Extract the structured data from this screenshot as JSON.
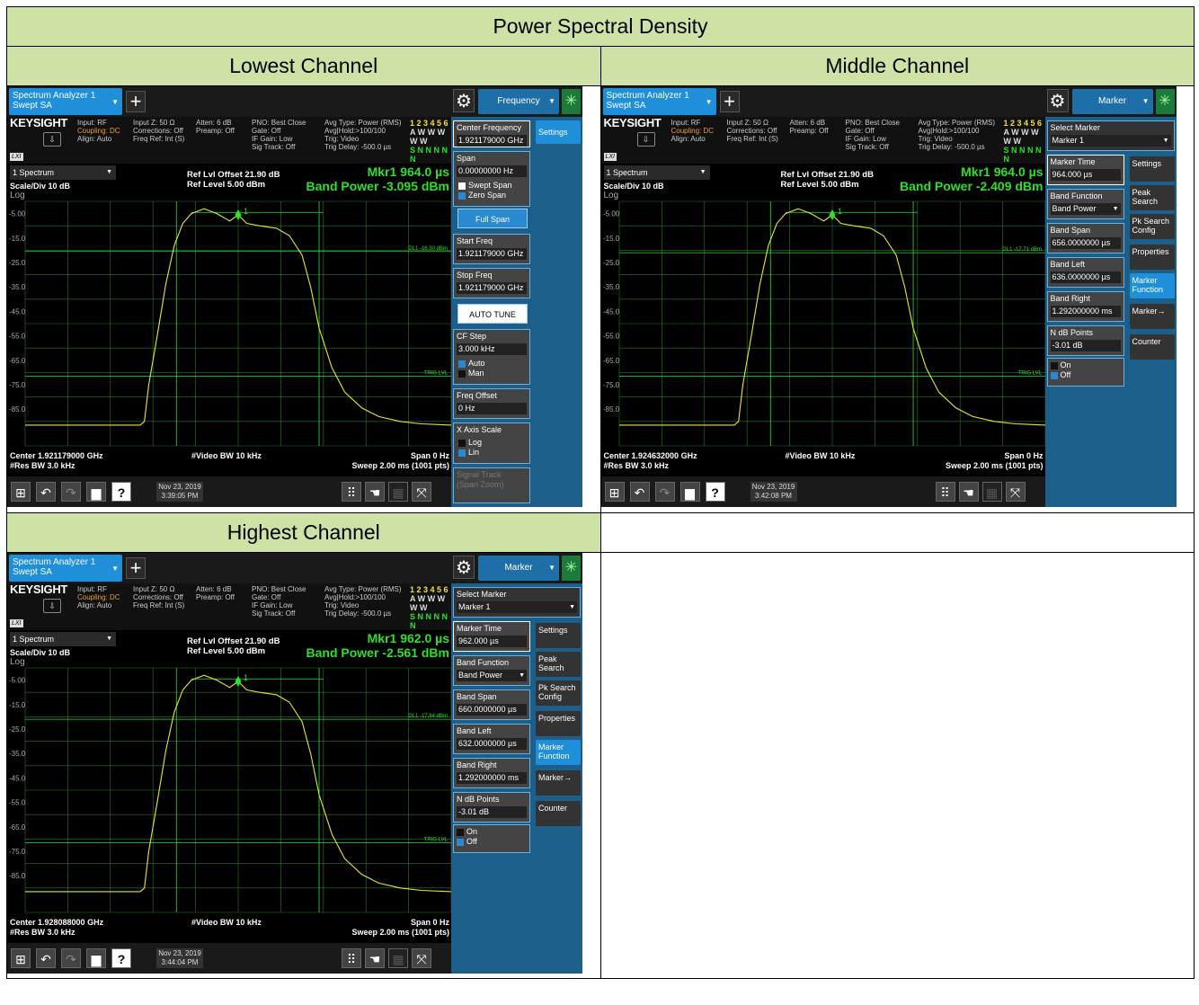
{
  "doc": {
    "title": "Power Spectral Density",
    "lowest": "Lowest Channel",
    "middle": "Middle Channel",
    "highest": "Highest Channel"
  },
  "common": {
    "tab_line1": "Spectrum Analyzer 1",
    "tab_line2": "Swept SA",
    "brand": "KEYSIGHT",
    "lxi": "LXI",
    "input": "Input: RF",
    "coupling": "Coupling: DC",
    "align": "Align: Auto",
    "inputz": "Input Z: 50 Ω",
    "corrections": "Corrections: Off",
    "freqref": "Freq Ref: Int (S)",
    "atten": "Atten: 6 dB",
    "preamp": "Preamp: Off",
    "pno": "PNO: Best Close",
    "gate": "Gate: Off",
    "ifgain": "IF Gain: Low",
    "sigtrack": "Sig Track: Off",
    "avgtype": "Avg Type: Power (RMS)",
    "avghold": "Avg|Hold:>100/100",
    "trig": "Trig: Video",
    "trigdelay": "Trig Delay: -500.0 µs",
    "trace_row1": "1 2 3 4 5 6",
    "trace_row2": "A W W W W W",
    "trace_row3": "S N N N N N",
    "spectrum": "1 Spectrum",
    "scale": "Scale/Div 10 dB",
    "log": "Log",
    "ref_offset": "Ref Lvl Offset 21.90 dB",
    "ref_level": "Ref Level 5.00 dBm",
    "vbw": "#Video BW 10 kHz",
    "rbw": "#Res BW 3.0 kHz",
    "span": "Span 0 Hz",
    "sweep": "Sweep 2.00 ms (1001 pts)",
    "trig_lvl": "TRIG LVL",
    "yticks": [
      "-5.00",
      "-15.0",
      "-25.0",
      "-35.0",
      "-45.0",
      "-55.0",
      "-65.0",
      "-75.0",
      "-85.0"
    ],
    "marker_tag": "1"
  },
  "low": {
    "mode": "Frequency",
    "mkr": "Mkr1  964.0 µs",
    "band": "Band Power -3.095 dBm",
    "center": "Center 1.921179000 GHz",
    "date": "Nov 23, 2019",
    "time": "3:39:05 PM",
    "dl": "DL1 -16.30 dBm",
    "p_cf": "Center Frequency",
    "p_cf_v": "1.921179000 GHz",
    "p_span": "Span",
    "p_span_v": "0.00000000 Hz",
    "p_swept": "Swept Span",
    "p_zero": "Zero Span",
    "p_full": "Full Span",
    "p_start": "Start Freq",
    "p_start_v": "1.921179000 GHz",
    "p_stop": "Stop Freq",
    "p_stop_v": "1.921179000 GHz",
    "p_auto": "AUTO TUNE",
    "p_cfstep": "CF Step",
    "p_cfstep_v": "3.000 kHz",
    "p_auto2": "Auto",
    "p_man": "Man",
    "p_fo": "Freq Offset",
    "p_fo_v": "0 Hz",
    "p_xaxis": "X Axis Scale",
    "p_log": "Log",
    "p_lin": "Lin",
    "p_sig": "Signal Track",
    "p_sig2": "(Span Zoom)",
    "s_settings": "Settings"
  },
  "mid": {
    "mode": "Marker",
    "mkr": "Mkr1  964.0 µs",
    "band": "Band Power -2.409 dBm",
    "center": "Center 1.924632000 GHz",
    "date": "Nov 23, 2019",
    "time": "3:42:08 PM",
    "dl": "DL1 -17.71 dBm",
    "sel": "Select Marker",
    "sel_v": "Marker 1",
    "mt": "Marker Time",
    "mt_v": "964.000 µs",
    "bf": "Band Function",
    "bf_v": "Band Power",
    "bs": "Band Span",
    "bs_v": "656.0000000 µs",
    "bl": "Band Left",
    "bl_v": "636.0000000 µs",
    "br": "Band Right",
    "br_v": "1.292000000 ms",
    "nd": "N dB Points",
    "nd_v": "-3.01 dB",
    "on": "On",
    "off": "Off"
  },
  "high": {
    "mode": "Marker",
    "mkr": "Mkr1  962.0 µs",
    "band": "Band Power -2.561 dBm",
    "center": "Center 1.928088000 GHz",
    "date": "Nov 23, 2019",
    "time": "3:44:04 PM",
    "dl": "DL1 -17.84 dBm",
    "sel": "Select Marker",
    "sel_v": "Marker 1",
    "mt": "Marker Time",
    "mt_v": "962.000 µs",
    "bf": "Band Function",
    "bf_v": "Band Power",
    "bs": "Band Span",
    "bs_v": "660.0000000 µs",
    "bl": "Band Left",
    "bl_v": "632.0000000 µs",
    "br": "Band Right",
    "br_v": "1.292000000 ms",
    "nd": "N dB Points",
    "nd_v": "-3.01 dB",
    "on": "On",
    "off": "Off"
  },
  "side": {
    "settings": "Settings",
    "peak": "Peak Search",
    "pkcfg": "Pk Search Config",
    "props": "Properties",
    "mfunc": "Marker Function",
    "marrow": "Marker→",
    "counter": "Counter"
  },
  "colors": {
    "trace": "#e8e830",
    "grid": "#2a7a2a",
    "marker": "#2ce02c",
    "header_bg": "#cfe2a6"
  }
}
